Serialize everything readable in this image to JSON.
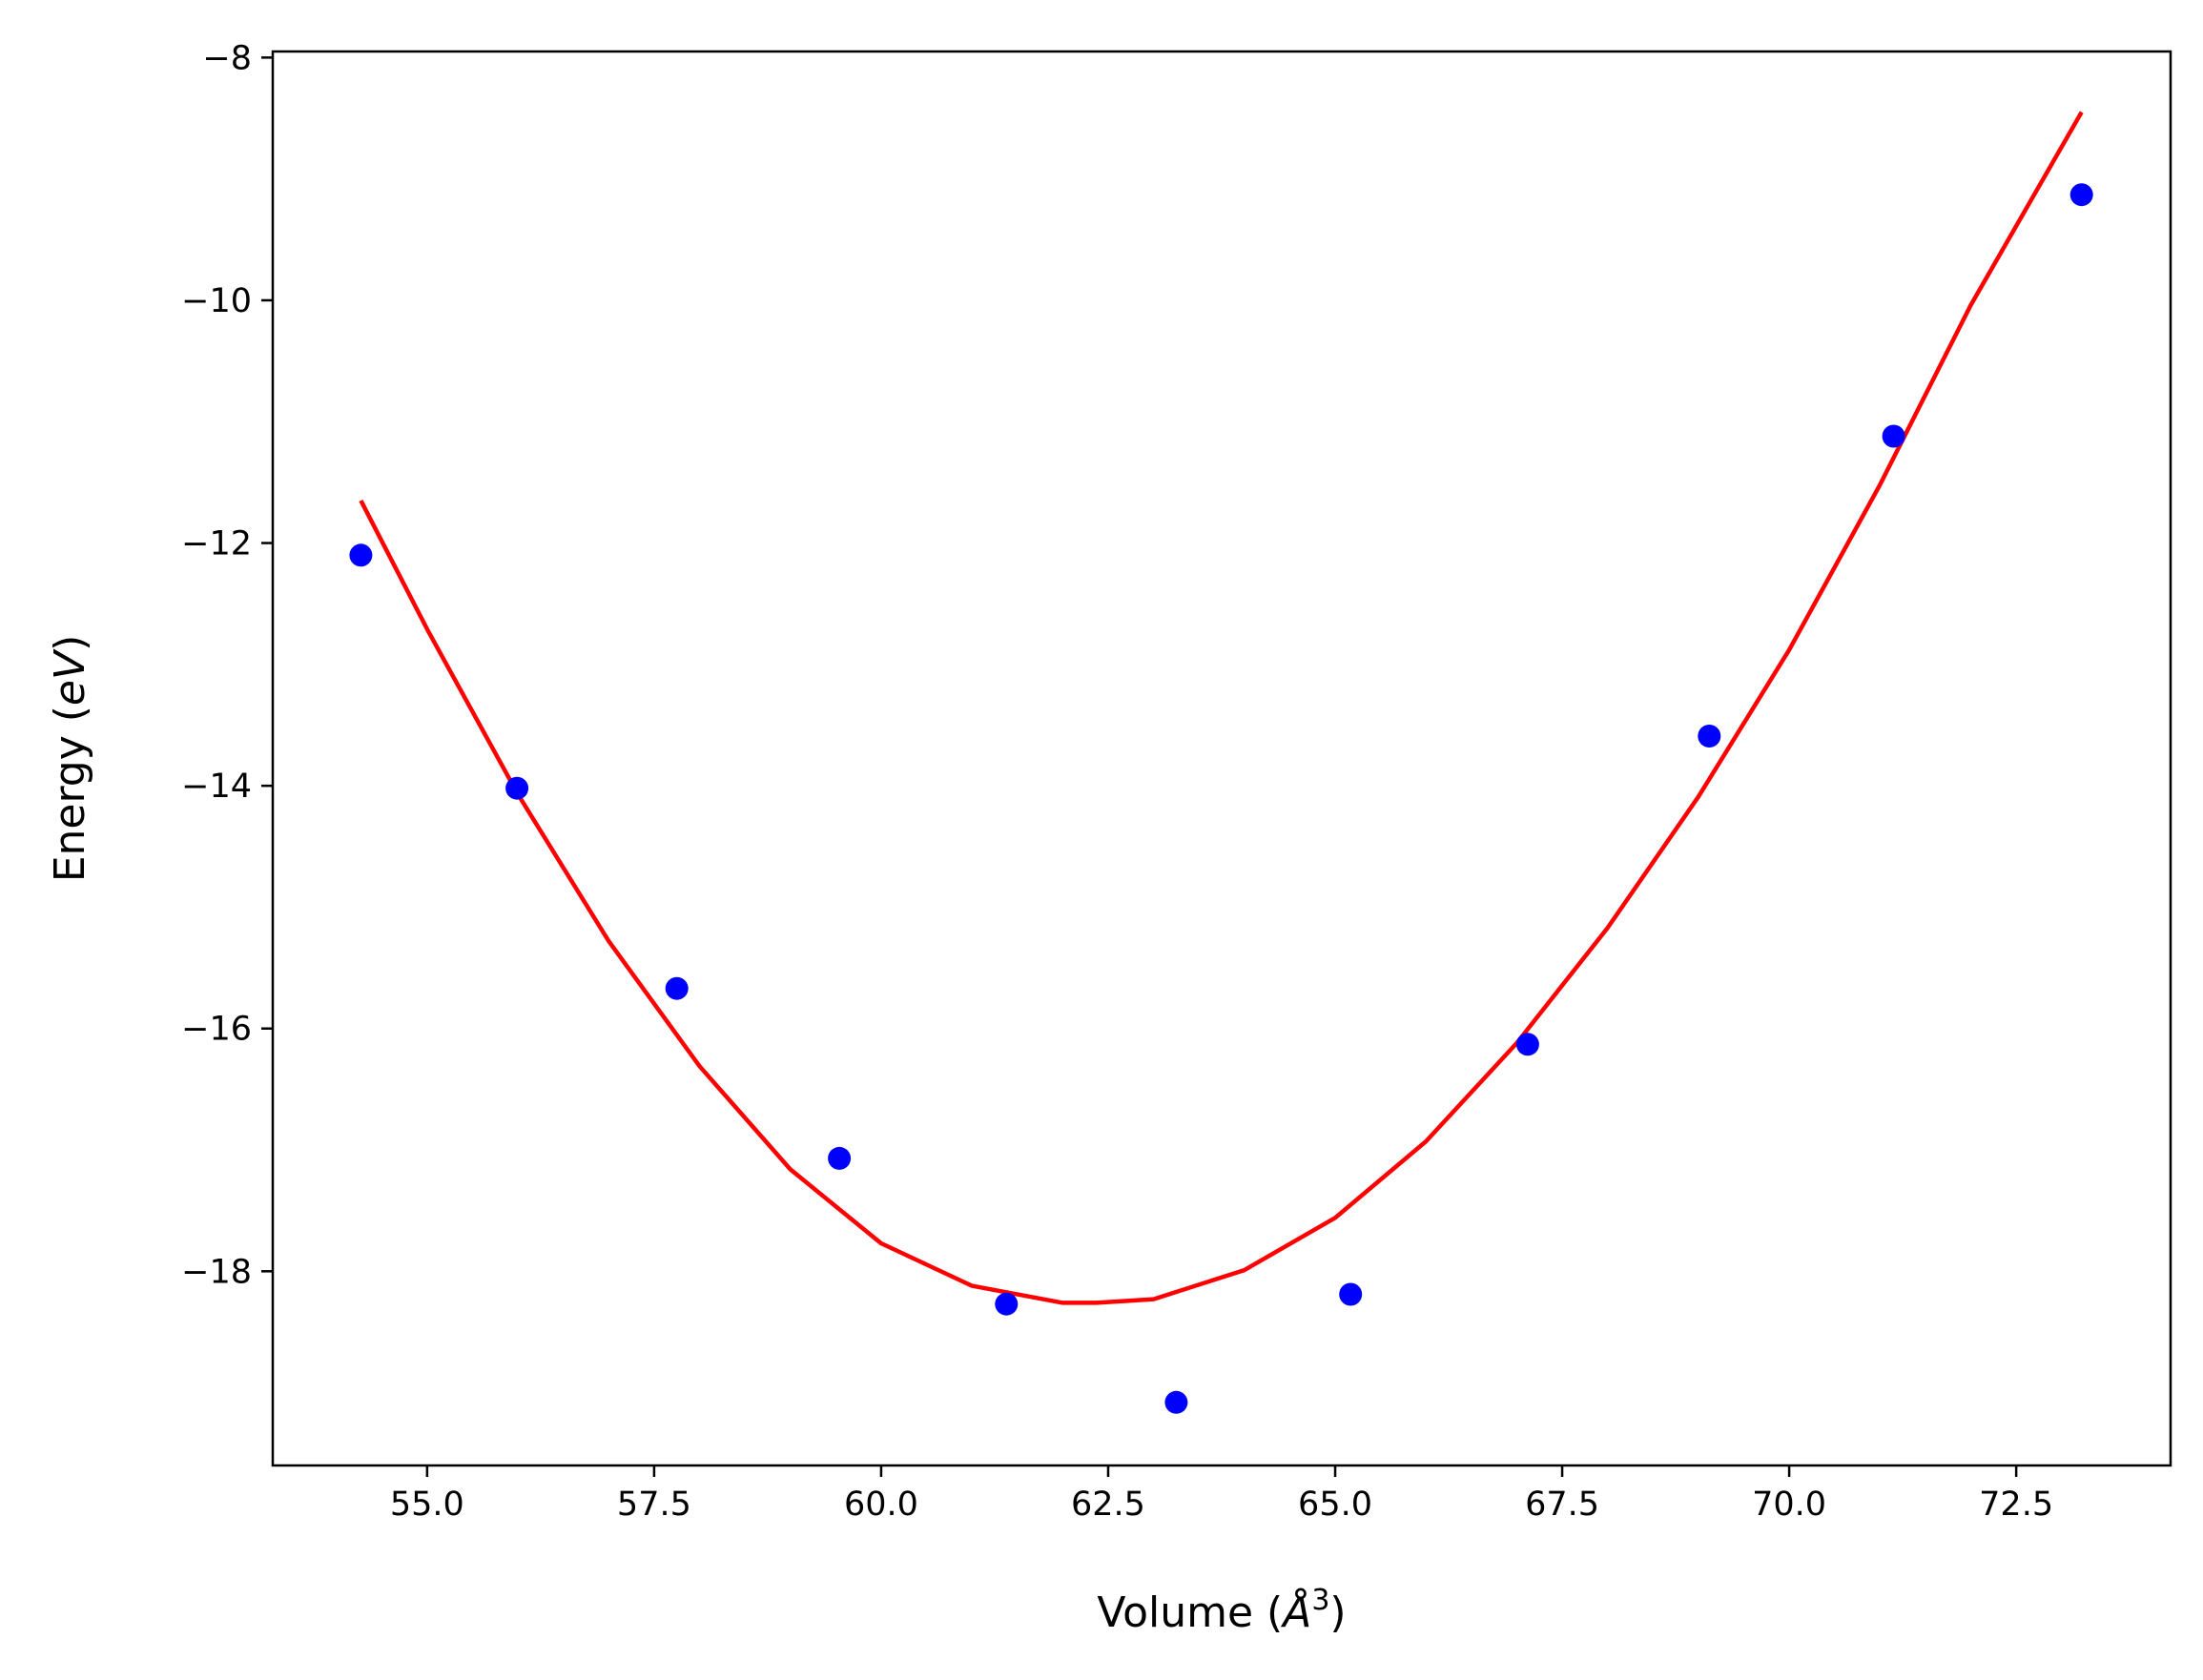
{
  "chart_data": {
    "type": "scatter",
    "title": "",
    "xlabel": "Volume (",
    "xlabel_unit": "Å",
    "xlabel_exp": "3",
    "xlabel_close": ")",
    "ylabel": "Energy (",
    "ylabel_unit": "eV",
    "ylabel_close": ")",
    "xlim": [
      53.3,
      74.2
    ],
    "ylim": [
      -19.6,
      -7.95
    ],
    "xticks": [
      55.0,
      57.5,
      60.0,
      62.5,
      65.0,
      67.5,
      70.0,
      72.5
    ],
    "xtick_labels": [
      "55.0",
      "57.5",
      "60.0",
      "62.5",
      "65.0",
      "67.5",
      "70.0",
      "72.5"
    ],
    "yticks": [
      -8,
      -10,
      -12,
      -14,
      -16,
      -18
    ],
    "ytick_labels": [
      "−8",
      "−10",
      "−12",
      "−14",
      "−16",
      "−18"
    ],
    "grid": false,
    "series": [
      {
        "kind": "scatter",
        "color": "#0000ff",
        "x": [
          54.27,
          55.99,
          57.75,
          59.54,
          61.38,
          63.25,
          65.17,
          67.12,
          69.12,
          71.15,
          73.22
        ],
        "y": [
          -12.1,
          -14.02,
          -15.67,
          -17.07,
          -18.27,
          -19.08,
          -18.19,
          -16.13,
          -13.59,
          -11.12,
          -9.13
        ]
      },
      {
        "kind": "line",
        "color": "#ff0000",
        "x": [
          54.27,
          55.0,
          56.0,
          57.0,
          58.0,
          59.0,
          60.0,
          61.0,
          62.0,
          62.37,
          63.0,
          64.0,
          65.0,
          66.0,
          67.0,
          68.0,
          69.0,
          70.0,
          71.0,
          72.0,
          73.22
        ],
        "y": [
          -11.65,
          -12.71,
          -14.07,
          -15.28,
          -16.31,
          -17.16,
          -17.77,
          -18.12,
          -18.26,
          -18.26,
          -18.23,
          -17.99,
          -17.56,
          -16.93,
          -16.12,
          -15.17,
          -14.09,
          -12.88,
          -11.52,
          -10.04,
          -8.45
        ]
      }
    ]
  }
}
